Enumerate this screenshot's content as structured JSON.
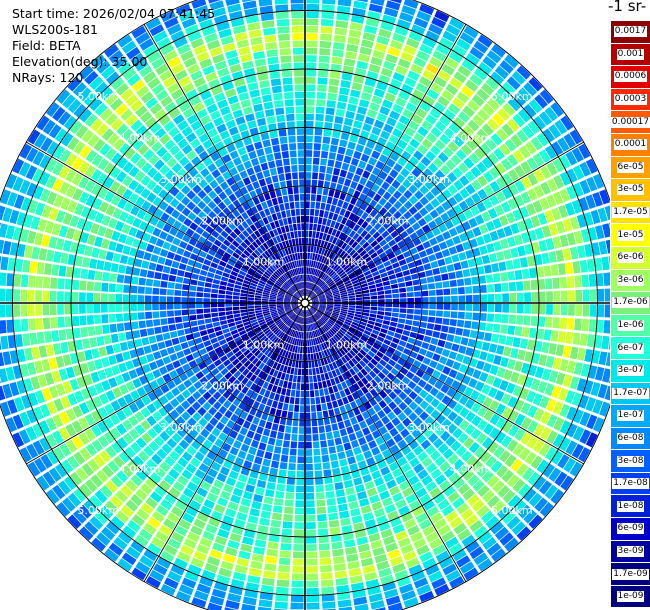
{
  "header": {
    "start_time": "Start time: 2026/02/04 07:41:45",
    "instrument": "WLS200s-181",
    "field": "Field: BETA",
    "elevation": "Elevation(deg): 35.00",
    "nrays": "NRays: 120"
  },
  "colorbar": {
    "title": "-1 sr-",
    "labels": [
      "0.0017",
      "0.001",
      "0.0006",
      "0.0003",
      "0.00017",
      "0.0001",
      "6e-05",
      "3e-05",
      "1.7e-05",
      "1e-05",
      "6e-06",
      "3e-06",
      "1.7e-06",
      "1e-06",
      "6e-07",
      "3e-07",
      "1.7e-07",
      "1e-07",
      "6e-08",
      "3e-08",
      "1.7e-08",
      "1e-08",
      "6e-09",
      "3e-09",
      "1.7e-09",
      "1e-09"
    ],
    "colors": [
      "#8b0000",
      "#b30000",
      "#e00000",
      "#ff2a00",
      "#ff5a00",
      "#ff7f00",
      "#ffa000",
      "#ffc000",
      "#ffe000",
      "#ffff00",
      "#d4ff30",
      "#a0ff60",
      "#78f07a",
      "#50ffa8",
      "#20ffd8",
      "#00e8e8",
      "#00c8f0",
      "#00a8f8",
      "#0088ff",
      "#0060ff",
      "#0040f0",
      "#0020d8",
      "#0000c8",
      "#0000a0",
      "#000080"
    ]
  },
  "range_labels": {
    "ring1": "1.00km",
    "ring2": "2.00km",
    "ring3": "3.00km",
    "ring4": "4.00km",
    "ring5": "5.00km"
  },
  "chart_data": {
    "type": "heatmap",
    "projection": "polar PPI",
    "title": "",
    "field": "BETA",
    "units": "-1 sr-",
    "elevation_deg": 35.0,
    "n_rays": 120,
    "range_rings_km": [
      1,
      2,
      3,
      4,
      5
    ],
    "max_range_km": 5.5,
    "azimuth_spokes_deg": [
      0,
      30,
      60,
      90,
      120,
      150,
      180,
      210,
      240,
      270,
      300,
      330
    ],
    "colorbar_ticks": [
      0.0017,
      0.001,
      0.0006,
      0.0003,
      0.00017,
      0.0001,
      6e-05,
      3e-05,
      1.7e-05,
      1e-05,
      6e-06,
      3e-06,
      1.7e-06,
      1e-06,
      6e-07,
      3e-07,
      1.7e-07,
      1e-07,
      6e-08,
      3e-08,
      1.7e-08,
      1e-08,
      6e-09,
      3e-09,
      1.7e-09,
      1e-09
    ],
    "radial_profile_log10_beta": [
      {
        "range_km": 0.0,
        "value": -8.6
      },
      {
        "range_km": 1.0,
        "value": -8.3
      },
      {
        "range_km": 2.0,
        "value": -7.7
      },
      {
        "range_km": 2.7,
        "value": -7.2
      },
      {
        "range_km": 3.5,
        "value": -6.3
      },
      {
        "range_km": 4.2,
        "value": -6.0
      },
      {
        "range_km": 4.6,
        "value": -5.3
      },
      {
        "range_km": 5.0,
        "value": -6.6
      },
      {
        "range_km": 5.5,
        "value": -7.5
      }
    ]
  }
}
